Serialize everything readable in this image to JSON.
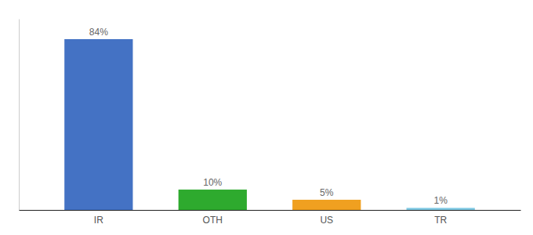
{
  "chart_data": {
    "type": "bar",
    "categories": [
      "IR",
      "OTH",
      "US",
      "TR"
    ],
    "values": [
      84,
      10,
      5,
      1
    ],
    "value_labels": [
      "84%",
      "10%",
      "5%",
      "1%"
    ],
    "colors": [
      "#4472c4",
      "#2eaa2e",
      "#f0a020",
      "#7ec8e3"
    ],
    "ylim": [
      0,
      94
    ],
    "data_labels": true,
    "tick_labels": "x"
  }
}
